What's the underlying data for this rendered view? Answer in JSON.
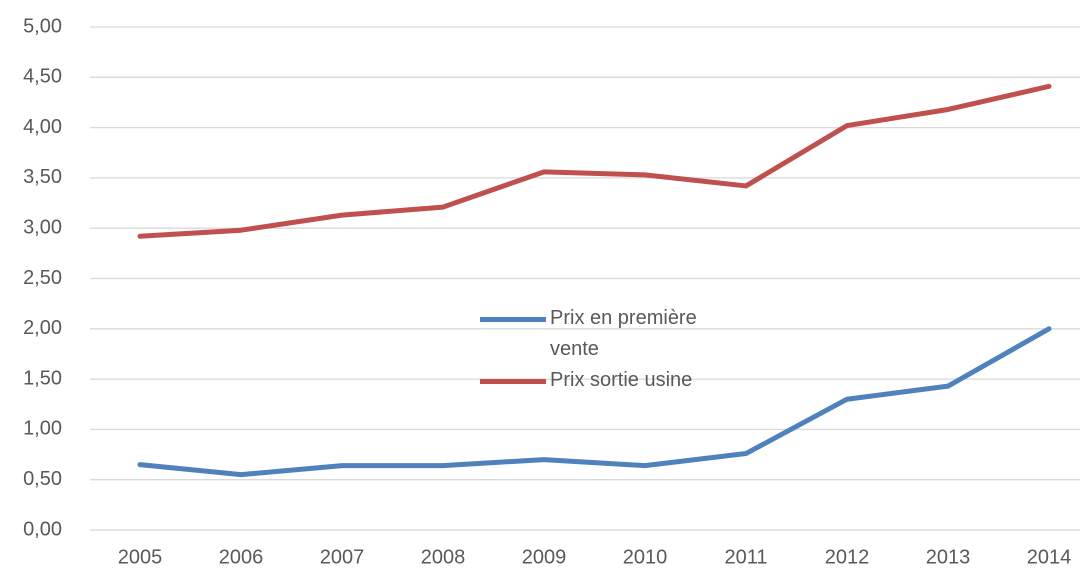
{
  "chart_data": {
    "type": "line",
    "categories": [
      "2005",
      "2006",
      "2007",
      "2008",
      "2009",
      "2010",
      "2011",
      "2012",
      "2013",
      "2014"
    ],
    "series": [
      {
        "name": "Prix en première vente",
        "color": "#4f81bd",
        "values": [
          0.65,
          0.55,
          0.64,
          0.64,
          0.7,
          0.64,
          0.76,
          1.3,
          1.43,
          2.0
        ]
      },
      {
        "name": "Prix sortie usine",
        "color": "#c0504d",
        "values": [
          2.92,
          2.98,
          3.13,
          3.21,
          3.56,
          3.53,
          3.42,
          4.02,
          4.18,
          4.41
        ]
      }
    ],
    "ylim": [
      0,
      5
    ],
    "yticks": [
      {
        "value": 0,
        "label": "0,00"
      },
      {
        "value": 0.5,
        "label": "0,50"
      },
      {
        "value": 1,
        "label": "1,00"
      },
      {
        "value": 1.5,
        "label": "1,50"
      },
      {
        "value": 2,
        "label": "2,00"
      },
      {
        "value": 2.5,
        "label": "2,50"
      },
      {
        "value": 3,
        "label": "3,00"
      },
      {
        "value": 3.5,
        "label": "3,50"
      },
      {
        "value": 4,
        "label": "4,00"
      },
      {
        "value": 4.5,
        "label": "4,50"
      },
      {
        "value": 5,
        "label": "5,00"
      }
    ],
    "grid": true,
    "legend": "center"
  }
}
